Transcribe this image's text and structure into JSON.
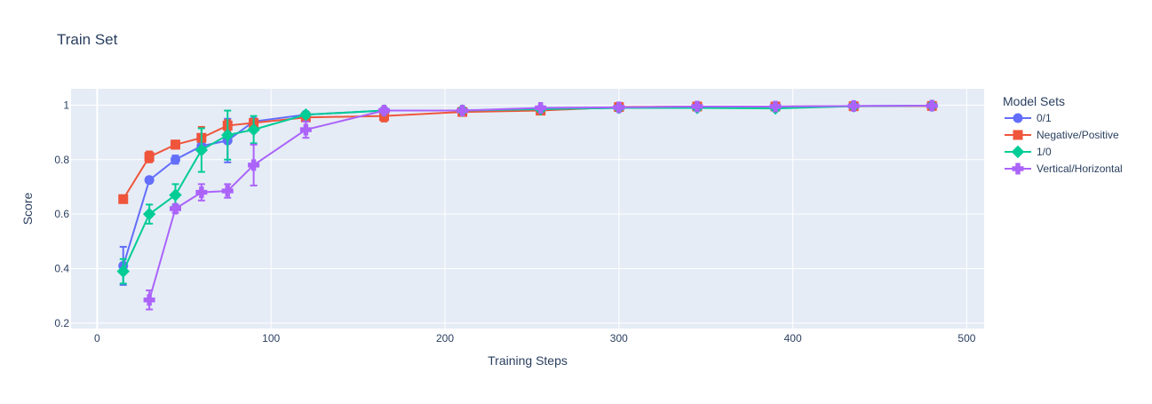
{
  "chart_data": {
    "type": "line",
    "title": "Train Set",
    "xlabel": "Training Steps",
    "ylabel": "Score",
    "xlim": [
      -15,
      510
    ],
    "ylim": [
      0.18,
      1.06
    ],
    "xticks": [
      0,
      100,
      200,
      300,
      400,
      500
    ],
    "yticks": [
      0.2,
      0.4,
      0.6,
      0.8,
      1
    ],
    "grid": true,
    "legend": {
      "title": "Model Sets",
      "placement": "right"
    },
    "series": [
      {
        "name": "0/1",
        "color": "#636efa",
        "marker": "circle",
        "x": [
          15,
          30,
          45,
          60,
          75,
          90,
          120,
          165,
          210,
          255,
          300,
          345,
          390,
          435,
          480
        ],
        "y": [
          0.41,
          0.725,
          0.8,
          0.85,
          0.87,
          0.94,
          0.965,
          0.98,
          0.98,
          0.985,
          0.99,
          0.995,
          0.995,
          0.997,
          0.998
        ],
        "err": [
          0.07,
          0.01,
          0.015,
          0.02,
          0.08,
          0.01,
          0.01,
          0.01,
          0.005,
          0.005,
          0.005,
          0.005,
          0.005,
          0.003,
          0.003
        ]
      },
      {
        "name": "Negative/Positive",
        "color": "#ef553b",
        "marker": "square",
        "x": [
          15,
          30,
          45,
          60,
          75,
          90,
          120,
          165,
          210,
          255,
          300,
          345,
          390,
          435,
          480
        ],
        "y": [
          0.655,
          0.81,
          0.855,
          0.88,
          0.925,
          0.935,
          0.955,
          0.96,
          0.975,
          0.98,
          0.993,
          0.995,
          0.995,
          0.996,
          0.997
        ],
        "err": [
          0.005,
          0.02,
          0.015,
          0.04,
          0.02,
          0.01,
          0.01,
          0.02,
          0.005,
          0.01,
          0.005,
          0.005,
          0.005,
          0.005,
          0.003
        ]
      },
      {
        "name": "1/0",
        "color": "#00cc96",
        "marker": "diamond",
        "x": [
          15,
          30,
          45,
          60,
          75,
          90,
          120,
          165,
          210,
          255,
          300,
          345,
          390,
          435,
          480
        ],
        "y": [
          0.39,
          0.6,
          0.67,
          0.835,
          0.89,
          0.91,
          0.965,
          0.98,
          0.98,
          0.985,
          0.99,
          0.99,
          0.988,
          0.996,
          0.998
        ],
        "err": [
          0.045,
          0.035,
          0.04,
          0.08,
          0.09,
          0.05,
          0.01,
          0.01,
          0.005,
          0.005,
          0.005,
          0.005,
          0.005,
          0.003,
          0.003
        ]
      },
      {
        "name": "Vertical/Horizontal",
        "color": "#ab63fa",
        "marker": "cross",
        "x": [
          30,
          45,
          60,
          75,
          90,
          120,
          165,
          210,
          255,
          300,
          345,
          390,
          435,
          480
        ],
        "y": [
          0.285,
          0.62,
          0.68,
          0.685,
          0.78,
          0.91,
          0.98,
          0.98,
          0.99,
          0.992,
          0.995,
          0.995,
          0.997,
          0.998
        ],
        "err": [
          0.035,
          0.015,
          0.03,
          0.025,
          0.075,
          0.03,
          0.01,
          0.005,
          0.005,
          0.005,
          0.005,
          0.005,
          0.003,
          0.003
        ]
      }
    ]
  }
}
